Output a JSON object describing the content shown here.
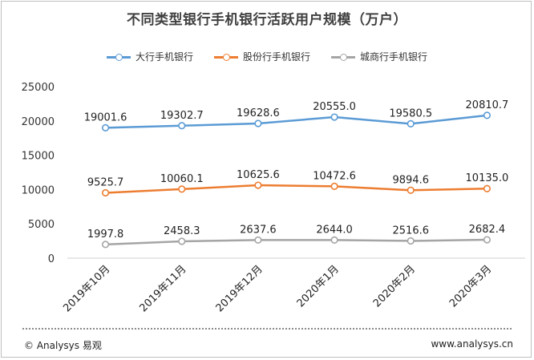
{
  "chart_data": {
    "type": "line",
    "title": "不同类型银行手机银行活跃用户规模（万户）",
    "categories": [
      "2019年10月",
      "2019年11月",
      "2019年12月",
      "2020年1月",
      "2020年2月",
      "2020年3月"
    ],
    "ylim": [
      0,
      25000
    ],
    "yticks": [
      0,
      5000,
      10000,
      15000,
      20000,
      25000
    ],
    "grid": false,
    "legend_position": "top",
    "series": [
      {
        "name": "大行手机银行",
        "color": "#5b9bd5",
        "values": [
          19001.6,
          19302.7,
          19628.6,
          20555.0,
          19580.5,
          20810.7
        ],
        "labels": [
          "19001.6",
          "19302.7",
          "19628.6",
          "20555.0",
          "19580.5",
          "20810.7"
        ]
      },
      {
        "name": "股份行手机银行",
        "color": "#ed7d31",
        "values": [
          9525.7,
          10060.1,
          10625.6,
          10472.6,
          9894.6,
          10135.0
        ],
        "labels": [
          "9525.7",
          "10060.1",
          "10625.6",
          "10472.6",
          "9894.6",
          "10135.0"
        ]
      },
      {
        "name": "城商行手机银行",
        "color": "#a5a5a5",
        "values": [
          1997.8,
          2458.3,
          2637.6,
          2644.0,
          2516.6,
          2682.4
        ],
        "labels": [
          "1997.8",
          "2458.3",
          "2637.6",
          "2644.0",
          "2516.6",
          "2682.4"
        ]
      }
    ]
  },
  "footer": {
    "left": "© Analysys 易观",
    "right": "www.analysys.cn"
  }
}
